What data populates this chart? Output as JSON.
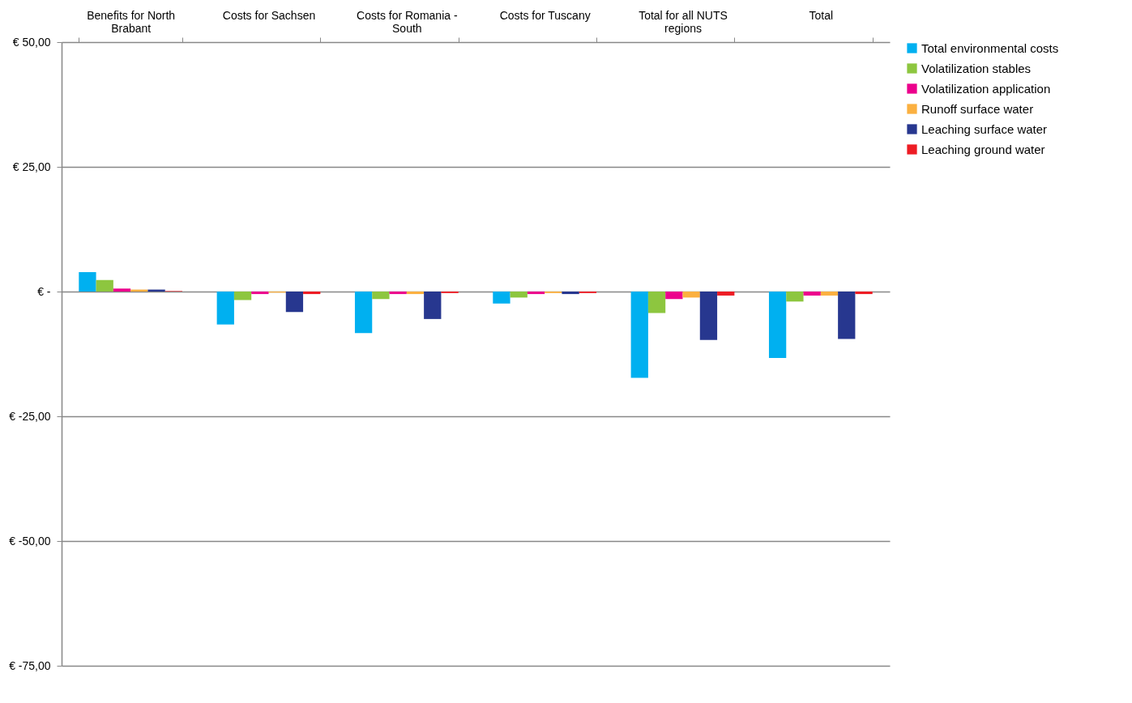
{
  "chart_data": {
    "type": "bar",
    "categories": [
      "Benefits for North Brabant",
      "Costs for Sachsen",
      "Costs for Romania - South",
      "Costs for Tuscany",
      "Total for all NUTS regions",
      "Total"
    ],
    "series": [
      {
        "name": "Total environmental costs",
        "color": "#00b0f0",
        "values": [
          3.9,
          -6.6,
          -8.3,
          -2.4,
          -17.3,
          -13.3
        ]
      },
      {
        "name": "Volatilization  stables",
        "color": "#8dc63f",
        "values": [
          2.3,
          -1.7,
          -1.5,
          -1.2,
          -4.3,
          -2.0
        ]
      },
      {
        "name": "Volatilization  application",
        "color": "#ec008c",
        "values": [
          0.6,
          -0.5,
          -0.5,
          -0.5,
          -1.5,
          -0.8
        ]
      },
      {
        "name": "Runoff surface water",
        "color": "#fbb040",
        "values": [
          0.4,
          -0.2,
          -0.5,
          -0.3,
          -1.2,
          -0.8
        ]
      },
      {
        "name": "Leaching surface water",
        "color": "#27378f",
        "values": [
          0.4,
          -4.1,
          -5.5,
          -0.5,
          -9.7,
          -9.5
        ]
      },
      {
        "name": "Leaching ground water",
        "color": "#ed1c24",
        "values": [
          0.1,
          -0.5,
          -0.3,
          -0.3,
          -0.8,
          -0.5
        ]
      }
    ],
    "ylim": [
      -75,
      50
    ],
    "yticks": [
      {
        "value": 50,
        "label": "€ 50,00"
      },
      {
        "value": 25,
        "label": "€ 25,00"
      },
      {
        "value": 0,
        "label": "€ -"
      },
      {
        "value": -25,
        "label": "€ -25,00"
      },
      {
        "value": -50,
        "label": "€ -50,00"
      },
      {
        "value": -75,
        "label": "€ -75,00"
      }
    ],
    "grid": "y",
    "legend": "right"
  }
}
